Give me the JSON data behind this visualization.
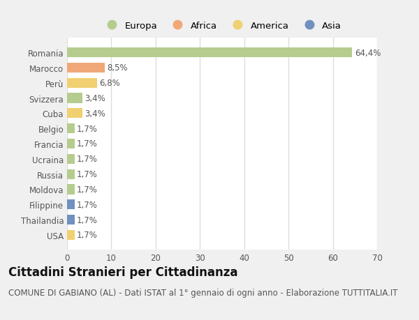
{
  "countries": [
    "Romania",
    "Marocco",
    "Perù",
    "Svizzera",
    "Cuba",
    "Belgio",
    "Francia",
    "Ucraina",
    "Russia",
    "Moldova",
    "Filippine",
    "Thailandia",
    "USA"
  ],
  "values": [
    64.4,
    8.5,
    6.8,
    3.4,
    3.4,
    1.7,
    1.7,
    1.7,
    1.7,
    1.7,
    1.7,
    1.7,
    1.7
  ],
  "labels": [
    "64,4%",
    "8,5%",
    "6,8%",
    "3,4%",
    "3,4%",
    "1,7%",
    "1,7%",
    "1,7%",
    "1,7%",
    "1,7%",
    "1,7%",
    "1,7%",
    "1,7%"
  ],
  "colors": [
    "#b5cc8e",
    "#f0a878",
    "#f0d070",
    "#b5cc8e",
    "#f0d070",
    "#b5cc8e",
    "#b5cc8e",
    "#b5cc8e",
    "#b5cc8e",
    "#b5cc8e",
    "#7090c0",
    "#7090c0",
    "#f0d070"
  ],
  "legend_labels": [
    "Europa",
    "Africa",
    "America",
    "Asia"
  ],
  "legend_colors": [
    "#b5cc8e",
    "#f0a878",
    "#f0d070",
    "#7090c0"
  ],
  "title": "Cittadini Stranieri per Cittadinanza",
  "subtitle": "COMUNE DI GABIANO (AL) - Dati ISTAT al 1° gennaio di ogni anno - Elaborazione TUTTITALIA.IT",
  "xlim": [
    0,
    70
  ],
  "xticks": [
    0,
    10,
    20,
    30,
    40,
    50,
    60,
    70
  ],
  "background_color": "#f0f0f0",
  "plot_bg_color": "#ffffff",
  "grid_color": "#dddddd",
  "title_fontsize": 12,
  "subtitle_fontsize": 8.5,
  "label_fontsize": 8.5,
  "tick_fontsize": 8.5,
  "legend_fontsize": 9.5
}
